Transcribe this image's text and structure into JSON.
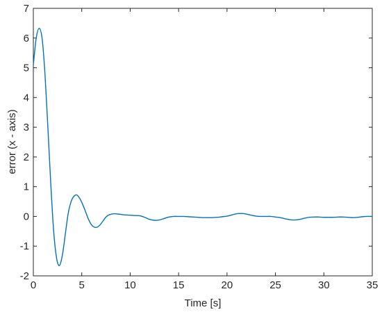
{
  "chart_data": {
    "type": "line",
    "title": "",
    "xlabel": "Time [s]",
    "ylabel": "error (x - axis)",
    "xlim": [
      0,
      35
    ],
    "ylim": [
      -2,
      7
    ],
    "xticks": [
      0,
      5,
      10,
      15,
      20,
      25,
      30,
      35
    ],
    "yticks": [
      -2,
      -1,
      0,
      1,
      2,
      3,
      4,
      5,
      6,
      7
    ],
    "grid": false,
    "line_color": "#0072BD",
    "series": [
      {
        "x": [
          0,
          0.3,
          0.6,
          0.9,
          1.2,
          1.5,
          1.8,
          2.1,
          2.4,
          2.7,
          3.0,
          3.3,
          3.6,
          3.9,
          4.2,
          4.5,
          4.8,
          5.1,
          5.4,
          5.7,
          6.0,
          6.3,
          6.6,
          6.9,
          7.2,
          7.5,
          7.8,
          8.1,
          8.4,
          8.7,
          9.0,
          9.5,
          10.0,
          10.5,
          11.0,
          11.5,
          12.0,
          12.5,
          13.0,
          13.5,
          14.0,
          14.5,
          15.0,
          15.5,
          16.0,
          16.5,
          17.0,
          17.5,
          18.0,
          18.5,
          19.0,
          19.5,
          20.0,
          20.5,
          21.0,
          21.5,
          22.0,
          22.5,
          23.0,
          23.5,
          24.0,
          24.5,
          25.0,
          25.5,
          26.0,
          26.5,
          27.0,
          27.5,
          28.0,
          28.5,
          29.0,
          29.5,
          30.0,
          30.5,
          31.0,
          31.5,
          32.0,
          32.5,
          33.0,
          33.5,
          34.0,
          34.5,
          35.0
        ],
        "y": [
          5.1,
          6.0,
          6.33,
          6.0,
          4.8,
          3.0,
          1.1,
          -0.5,
          -1.4,
          -1.65,
          -1.3,
          -0.6,
          0.1,
          0.5,
          0.68,
          0.72,
          0.6,
          0.4,
          0.15,
          -0.1,
          -0.28,
          -0.36,
          -0.36,
          -0.28,
          -0.15,
          -0.02,
          0.05,
          0.08,
          0.09,
          0.08,
          0.07,
          0.05,
          0.04,
          0.03,
          0.02,
          -0.03,
          -0.1,
          -0.13,
          -0.12,
          -0.07,
          -0.02,
          0.0,
          0.0,
          0.0,
          -0.01,
          -0.02,
          -0.03,
          -0.04,
          -0.04,
          -0.04,
          -0.03,
          -0.01,
          0.01,
          0.05,
          0.09,
          0.1,
          0.08,
          0.04,
          0.01,
          0.0,
          0.0,
          0.0,
          -0.02,
          -0.04,
          -0.08,
          -0.11,
          -0.12,
          -0.1,
          -0.06,
          -0.03,
          -0.02,
          -0.02,
          -0.03,
          -0.03,
          -0.03,
          -0.02,
          -0.02,
          -0.03,
          -0.04,
          -0.03,
          -0.01,
          0.0,
          0.0
        ]
      }
    ]
  }
}
